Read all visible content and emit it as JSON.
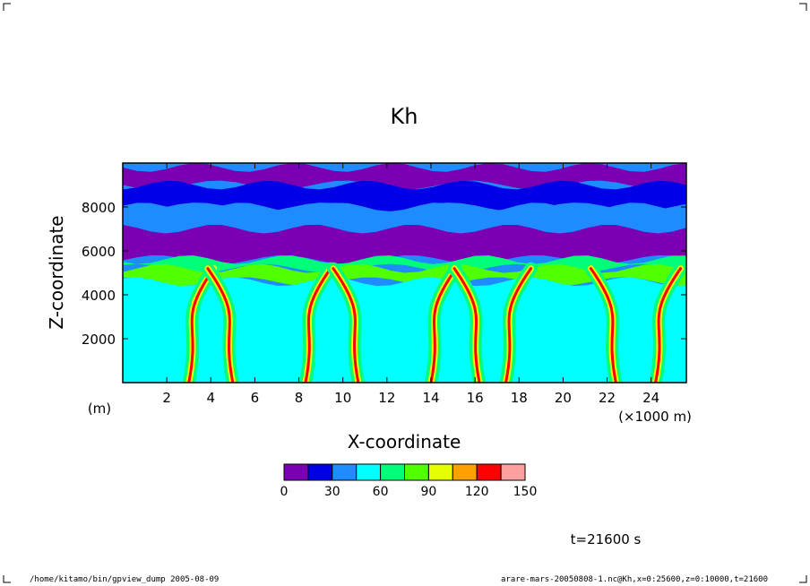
{
  "chart_data": {
    "type": "heatmap",
    "title": "Kh",
    "xlabel": "X-coordinate",
    "ylabel": "Z-coordinate",
    "x_unit_label": "(×1000 m)",
    "y_unit_label": "(m)",
    "xlim": [
      0,
      25.6
    ],
    "ylim": [
      0,
      10000
    ],
    "x_ticks": [
      2,
      4,
      6,
      8,
      10,
      12,
      14,
      16,
      18,
      20,
      22,
      24
    ],
    "y_ticks": [
      2000,
      4000,
      6000,
      8000
    ],
    "colorbar": {
      "levels": [
        0,
        15,
        30,
        45,
        60,
        75,
        90,
        105,
        120,
        135,
        150
      ],
      "tick_labels": [
        "0",
        "30",
        "60",
        "90",
        "120",
        "150"
      ],
      "tick_values": [
        0,
        30,
        60,
        90,
        120,
        150
      ],
      "colors": [
        "#7b00b4",
        "#0000e6",
        "#1e8cff",
        "#00ffff",
        "#00ff78",
        "#50ff00",
        "#e6ff00",
        "#ffa000",
        "#ff0000",
        "#ffa0a0"
      ]
    },
    "bands": [
      {
        "z_from": 9000,
        "z_to": 9800,
        "level": 0
      },
      {
        "z_from": 8000,
        "z_to": 9000,
        "level": 1
      },
      {
        "z_from": 7000,
        "z_to": 8000,
        "level": 2
      },
      {
        "z_from": 5600,
        "z_to": 7000,
        "level": 0
      },
      {
        "z_from": 5200,
        "z_to": 5600,
        "level": 4
      },
      {
        "z_from": 4600,
        "z_to": 5200,
        "level": 5
      },
      {
        "z_from": 0,
        "z_to": 4600,
        "level": 3
      }
    ],
    "plumes_x": [
      3.0,
      5.0,
      8.3,
      10.7,
      14.0,
      16.2,
      17.4,
      22.4,
      24.2
    ]
  },
  "time_label": "t=21600 s",
  "footer": {
    "left": "/home/kitamo/bin/gpview_dump  2005-08-09",
    "right": "arare-mars-20050808-1.nc@Kh,x=0:25600,z=0:10000,t=21600"
  }
}
